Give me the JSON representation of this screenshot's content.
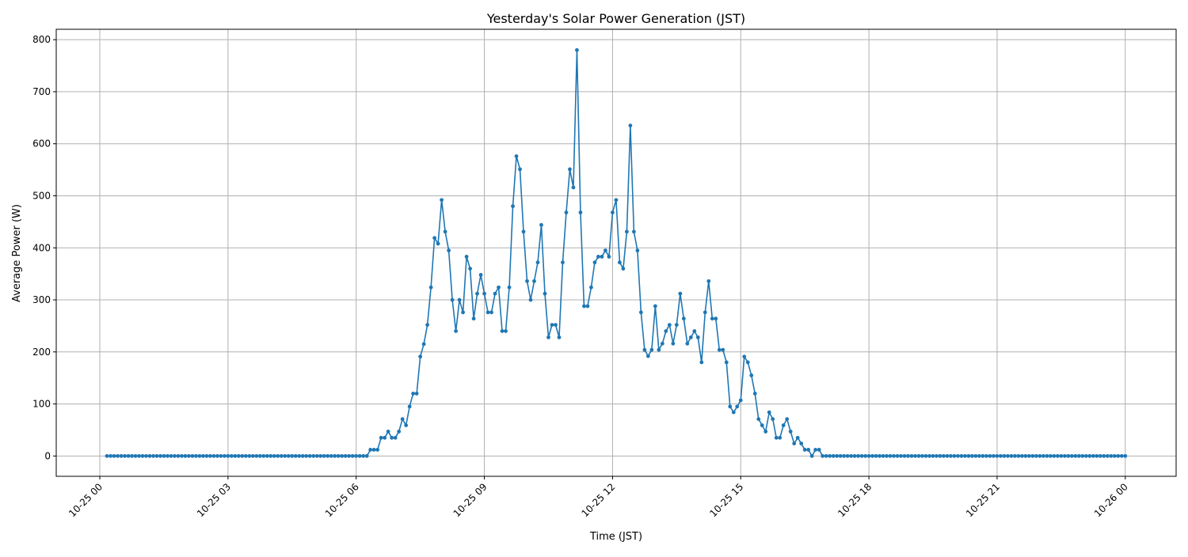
{
  "chart_data": {
    "type": "line",
    "title": "Yesterday's Solar Power Generation (JST)",
    "xlabel": "Time (JST)",
    "ylabel": "Average Power (W)",
    "x_start": "10-25 00:10",
    "x_step_minutes": 5,
    "xlim": [
      "10-24 22:59",
      "10-26 01:11"
    ],
    "ylim": [
      -39,
      820
    ],
    "x_ticks": [
      "10-25 00",
      "10-25 03",
      "10-25 06",
      "10-25 09",
      "10-25 12",
      "10-25 15",
      "10-25 18",
      "10-25 21",
      "10-26 00"
    ],
    "y_ticks": [
      0,
      100,
      200,
      300,
      400,
      500,
      600,
      700,
      800
    ],
    "grid": true,
    "line_color": "#1f77b4",
    "marker": "circle",
    "values": [
      0,
      0,
      0,
      0,
      0,
      0,
      0,
      0,
      0,
      0,
      0,
      0,
      0,
      0,
      0,
      0,
      0,
      0,
      0,
      0,
      0,
      0,
      0,
      0,
      0,
      0,
      0,
      0,
      0,
      0,
      0,
      0,
      0,
      0,
      0,
      0,
      0,
      0,
      0,
      0,
      0,
      0,
      0,
      0,
      0,
      0,
      0,
      0,
      0,
      0,
      0,
      0,
      0,
      0,
      0,
      0,
      0,
      0,
      0,
      0,
      0,
      0,
      0,
      0,
      0,
      0,
      0,
      0,
      0,
      0,
      0,
      0,
      0,
      0,
      12,
      12,
      12,
      35,
      35,
      47,
      35,
      35,
      47,
      71,
      59,
      95,
      120,
      120,
      191,
      215,
      252,
      324,
      419,
      408,
      492,
      431,
      395,
      300,
      240,
      300,
      276,
      383,
      360,
      264,
      312,
      348,
      312,
      276,
      276,
      312,
      324,
      240,
      240,
      324,
      480,
      576,
      551,
      431,
      336,
      300,
      336,
      372,
      444,
      312,
      228,
      252,
      252,
      228,
      372,
      468,
      551,
      516,
      780,
      468,
      288,
      288,
      324,
      372,
      383,
      383,
      395,
      383,
      468,
      492,
      372,
      360,
      431,
      635,
      431,
      395,
      276,
      204,
      192,
      204,
      288,
      204,
      216,
      240,
      252,
      216,
      252,
      312,
      264,
      216,
      228,
      240,
      228,
      180,
      276,
      336,
      264,
      264,
      204,
      204,
      180,
      95,
      84,
      95,
      107,
      191,
      180,
      155,
      120,
      71,
      59,
      47,
      84,
      71,
      35,
      35,
      59,
      71,
      47,
      24,
      35,
      24,
      12,
      12,
      0,
      12,
      12,
      0,
      0,
      0,
      0,
      0,
      0,
      0,
      0,
      0,
      0,
      0,
      0,
      0,
      0,
      0,
      0,
      0,
      0,
      0,
      0,
      0,
      0,
      0,
      0,
      0,
      0,
      0,
      0,
      0,
      0,
      0,
      0,
      0,
      0,
      0,
      0,
      0,
      0,
      0,
      0,
      0,
      0,
      0,
      0,
      0,
      0,
      0,
      0,
      0,
      0,
      0,
      0,
      0,
      0,
      0,
      0,
      0,
      0,
      0,
      0,
      0,
      0,
      0,
      0,
      0,
      0,
      0,
      0,
      0,
      0,
      0,
      0,
      0,
      0,
      0,
      0,
      0,
      0,
      0,
      0,
      0,
      0,
      0,
      0,
      0,
      0
    ]
  }
}
